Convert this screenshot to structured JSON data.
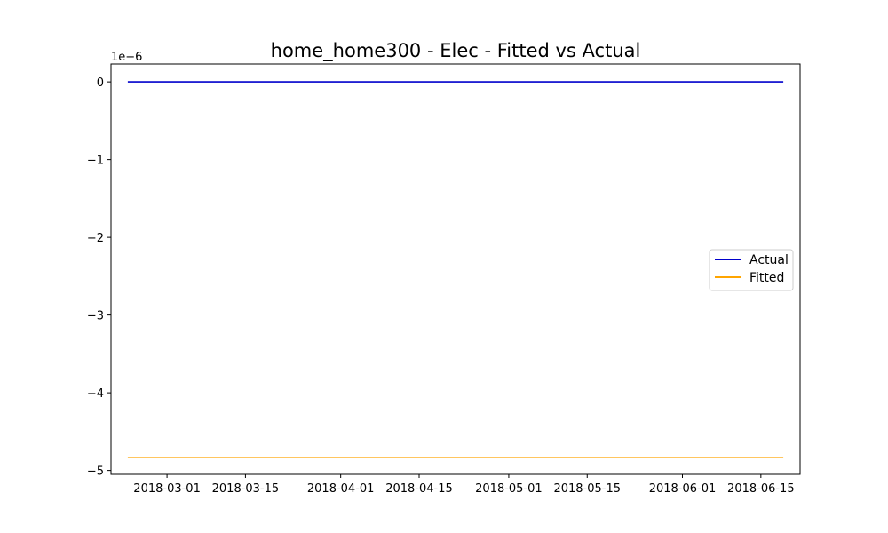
{
  "chart_data": {
    "type": "line",
    "title": "home_home300 - Elec - Fitted vs Actual",
    "xlabel": "",
    "ylabel": "",
    "y_offset_label": "1e−6",
    "x_range": [
      "2018-02-19",
      "2018-06-22"
    ],
    "y_range": [
      -5.05,
      0.23
    ],
    "x_ticks": [
      {
        "date": "2018-03-01",
        "label": "2018-03-01"
      },
      {
        "date": "2018-03-15",
        "label": "2018-03-15"
      },
      {
        "date": "2018-04-01",
        "label": "2018-04-01"
      },
      {
        "date": "2018-04-15",
        "label": "2018-04-15"
      },
      {
        "date": "2018-05-01",
        "label": "2018-05-01"
      },
      {
        "date": "2018-05-15",
        "label": "2018-05-15"
      },
      {
        "date": "2018-06-01",
        "label": "2018-06-01"
      },
      {
        "date": "2018-06-15",
        "label": "2018-06-15"
      }
    ],
    "y_ticks": [
      {
        "value": 0,
        "label": "0"
      },
      {
        "value": -1,
        "label": "−1"
      },
      {
        "value": -2,
        "label": "−2"
      },
      {
        "value": -3,
        "label": "−3"
      },
      {
        "value": -4,
        "label": "−4"
      },
      {
        "value": -5,
        "label": "−5"
      }
    ],
    "series": [
      {
        "name": "Actual",
        "color": "#0000cc",
        "x": [
          "2018-02-22",
          "2018-06-19"
        ],
        "y": [
          0,
          0
        ]
      },
      {
        "name": "Fitted",
        "color": "#ffa500",
        "x": [
          "2018-02-22",
          "2018-06-19"
        ],
        "y": [
          -4.83,
          -4.83
        ]
      }
    ],
    "grid": false,
    "legend": "center-right"
  }
}
